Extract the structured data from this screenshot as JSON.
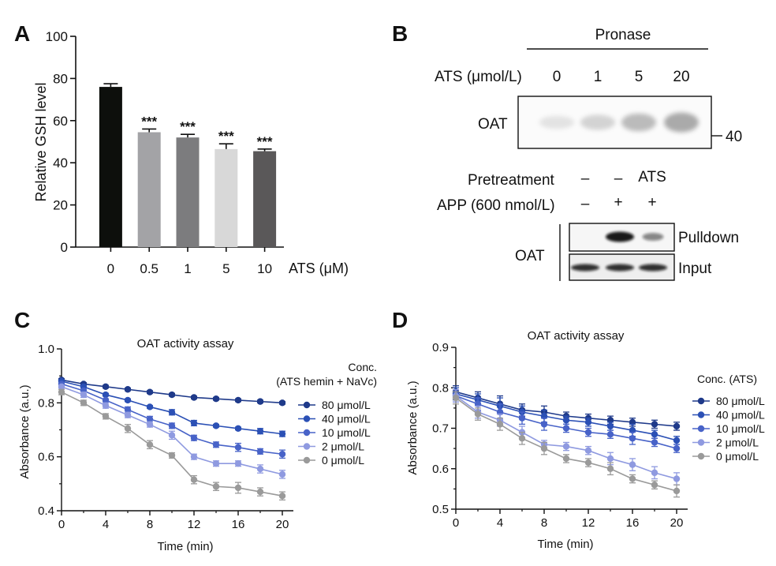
{
  "panels": [
    {
      "label": "A",
      "color": "#111111"
    },
    {
      "label": "B",
      "color": "#111111"
    },
    {
      "label": "C",
      "color": "#111111"
    },
    {
      "label": "D",
      "color": "#111111"
    }
  ],
  "chart_data": [
    {
      "panel": "A",
      "type": "bar",
      "title": "",
      "xlabel": "ATS (μM)",
      "ylabel": "Relative GSH level",
      "ylim": [
        0,
        100
      ],
      "yticks": [
        "0",
        "20",
        "40",
        "60",
        "80",
        "100"
      ],
      "categories": [
        "0",
        "0.5",
        "1",
        "5",
        "10"
      ],
      "values": [
        76,
        54.5,
        52,
        46.5,
        45.5
      ],
      "errors": [
        1.5,
        1.5,
        1.5,
        2.5,
        1.0
      ],
      "significance": [
        "",
        "***",
        "***",
        "***",
        "***"
      ],
      "colors": [
        "#0d0f0c",
        "#a3a3a6",
        "#7c7c7e",
        "#d8d8d8",
        "#5a5859"
      ]
    },
    {
      "panel": "C",
      "type": "line",
      "title": "OAT activity assay",
      "xlabel": "Time (min)",
      "ylabel": "Absorbance (a.u.)",
      "xlim": [
        0,
        21
      ],
      "ylim": [
        0.4,
        1.0
      ],
      "xticks": [
        "0",
        "4",
        "8",
        "12",
        "16",
        "20"
      ],
      "yticks": [
        "0.4",
        "0.6",
        "0.8",
        "1.0"
      ],
      "legend_title_lines": [
        "Conc.",
        "(ATS hemin + NaVc)"
      ],
      "x": [
        0,
        2,
        4,
        6,
        8,
        10,
        12,
        14,
        16,
        18,
        20
      ],
      "series": [
        {
          "name": "80 μmol/L",
          "color": "#1f3a8a",
          "values": [
            0.885,
            0.87,
            0.86,
            0.85,
            0.84,
            0.83,
            0.82,
            0.815,
            0.81,
            0.805,
            0.8
          ],
          "errors": [
            0.005,
            0.005,
            0.005,
            0.005,
            0.005,
            0.005,
            0.005,
            0.005,
            0.005,
            0.005,
            0.005
          ]
        },
        {
          "name": "40 μmol/L",
          "color": "#2b50b5",
          "values": [
            0.88,
            0.86,
            0.83,
            0.81,
            0.785,
            0.765,
            0.725,
            0.715,
            0.705,
            0.695,
            0.685
          ],
          "errors": [
            0.005,
            0.005,
            0.005,
            0.005,
            0.005,
            0.01,
            0.01,
            0.005,
            0.005,
            0.01,
            0.01
          ]
        },
        {
          "name": "10 μmol/L",
          "color": "#4863c8",
          "values": [
            0.87,
            0.845,
            0.81,
            0.775,
            0.74,
            0.715,
            0.67,
            0.645,
            0.635,
            0.62,
            0.61
          ],
          "errors": [
            0.005,
            0.005,
            0.005,
            0.01,
            0.01,
            0.01,
            0.01,
            0.01,
            0.015,
            0.01,
            0.015
          ]
        },
        {
          "name": "2 μmol/L",
          "color": "#8f9ae0",
          "values": [
            0.86,
            0.83,
            0.79,
            0.755,
            0.72,
            0.68,
            0.6,
            0.575,
            0.575,
            0.555,
            0.535
          ],
          "errors": [
            0.005,
            0.01,
            0.01,
            0.01,
            0.01,
            0.015,
            0.01,
            0.01,
            0.01,
            0.015,
            0.015
          ]
        },
        {
          "name": "0 μmol/L",
          "color": "#9a9a9a",
          "values": [
            0.84,
            0.8,
            0.75,
            0.705,
            0.645,
            0.605,
            0.515,
            0.49,
            0.485,
            0.47,
            0.455
          ],
          "errors": [
            0.01,
            0.01,
            0.01,
            0.015,
            0.015,
            0.01,
            0.015,
            0.015,
            0.02,
            0.015,
            0.015
          ]
        }
      ]
    },
    {
      "panel": "D",
      "type": "line",
      "title": "OAT activity assay",
      "xlabel": "Time (min)",
      "ylabel": "Absorbance (a.u.)",
      "xlim": [
        0,
        21
      ],
      "ylim": [
        0.5,
        0.9
      ],
      "xticks": [
        "0",
        "4",
        "8",
        "12",
        "16",
        "20"
      ],
      "yticks": [
        "0.5",
        "0.6",
        "0.7",
        "0.8",
        "0.9"
      ],
      "legend_title_lines": [
        "Conc. (ATS)"
      ],
      "x": [
        0,
        2,
        4,
        6,
        8,
        10,
        12,
        14,
        16,
        18,
        20
      ],
      "series": [
        {
          "name": "80 μmol/L",
          "color": "#1f3a8a",
          "values": [
            0.79,
            0.775,
            0.76,
            0.745,
            0.74,
            0.73,
            0.725,
            0.72,
            0.715,
            0.71,
            0.705
          ],
          "errors": [
            0.015,
            0.015,
            0.02,
            0.015,
            0.015,
            0.01,
            0.01,
            0.01,
            0.01,
            0.01,
            0.01
          ]
        },
        {
          "name": "40 μmol/L",
          "color": "#2b50b5",
          "values": [
            0.785,
            0.77,
            0.755,
            0.74,
            0.73,
            0.72,
            0.715,
            0.705,
            0.695,
            0.685,
            0.67
          ],
          "errors": [
            0.015,
            0.015,
            0.02,
            0.015,
            0.015,
            0.01,
            0.01,
            0.01,
            0.015,
            0.01,
            0.01
          ]
        },
        {
          "name": "10 μmol/L",
          "color": "#4863c8",
          "values": [
            0.78,
            0.76,
            0.74,
            0.725,
            0.71,
            0.7,
            0.69,
            0.685,
            0.675,
            0.665,
            0.65
          ],
          "errors": [
            0.015,
            0.015,
            0.02,
            0.015,
            0.015,
            0.01,
            0.01,
            0.01,
            0.015,
            0.01,
            0.01
          ]
        },
        {
          "name": "2 μmol/L",
          "color": "#8f9ae0",
          "values": [
            0.78,
            0.74,
            0.72,
            0.69,
            0.66,
            0.655,
            0.645,
            0.625,
            0.61,
            0.59,
            0.575
          ],
          "errors": [
            0.015,
            0.015,
            0.015,
            0.015,
            0.01,
            0.01,
            0.01,
            0.015,
            0.015,
            0.015,
            0.015
          ]
        },
        {
          "name": "0 μmol/L",
          "color": "#9a9a9a",
          "values": [
            0.775,
            0.735,
            0.71,
            0.675,
            0.65,
            0.625,
            0.615,
            0.6,
            0.575,
            0.56,
            0.545
          ],
          "errors": [
            0.015,
            0.015,
            0.015,
            0.015,
            0.015,
            0.01,
            0.01,
            0.015,
            0.01,
            0.01,
            0.015
          ]
        }
      ]
    }
  ],
  "blot": {
    "pronase_label": "Pronase",
    "ats_header": "ATS (μmol/L)",
    "ats_doses": [
      "0",
      "1",
      "5",
      "20"
    ],
    "oat_label": "OAT",
    "mw_marker": "40",
    "pretreatment_label": "Pretreatment",
    "pretreatment_values": [
      "–",
      "–",
      "ATS"
    ],
    "app_label": "APP (600 nmol/L)",
    "app_values": [
      "–",
      "+",
      "+"
    ],
    "oat_label_2": "OAT",
    "pulldown_label": "Pulldown",
    "input_label": "Input",
    "band_intensity_top": [
      0.05,
      0.25,
      0.55,
      0.75
    ],
    "band_intensity_pulldown": [
      0.0,
      1.0,
      0.35
    ],
    "band_intensity_input": [
      0.85,
      0.85,
      0.85
    ]
  }
}
